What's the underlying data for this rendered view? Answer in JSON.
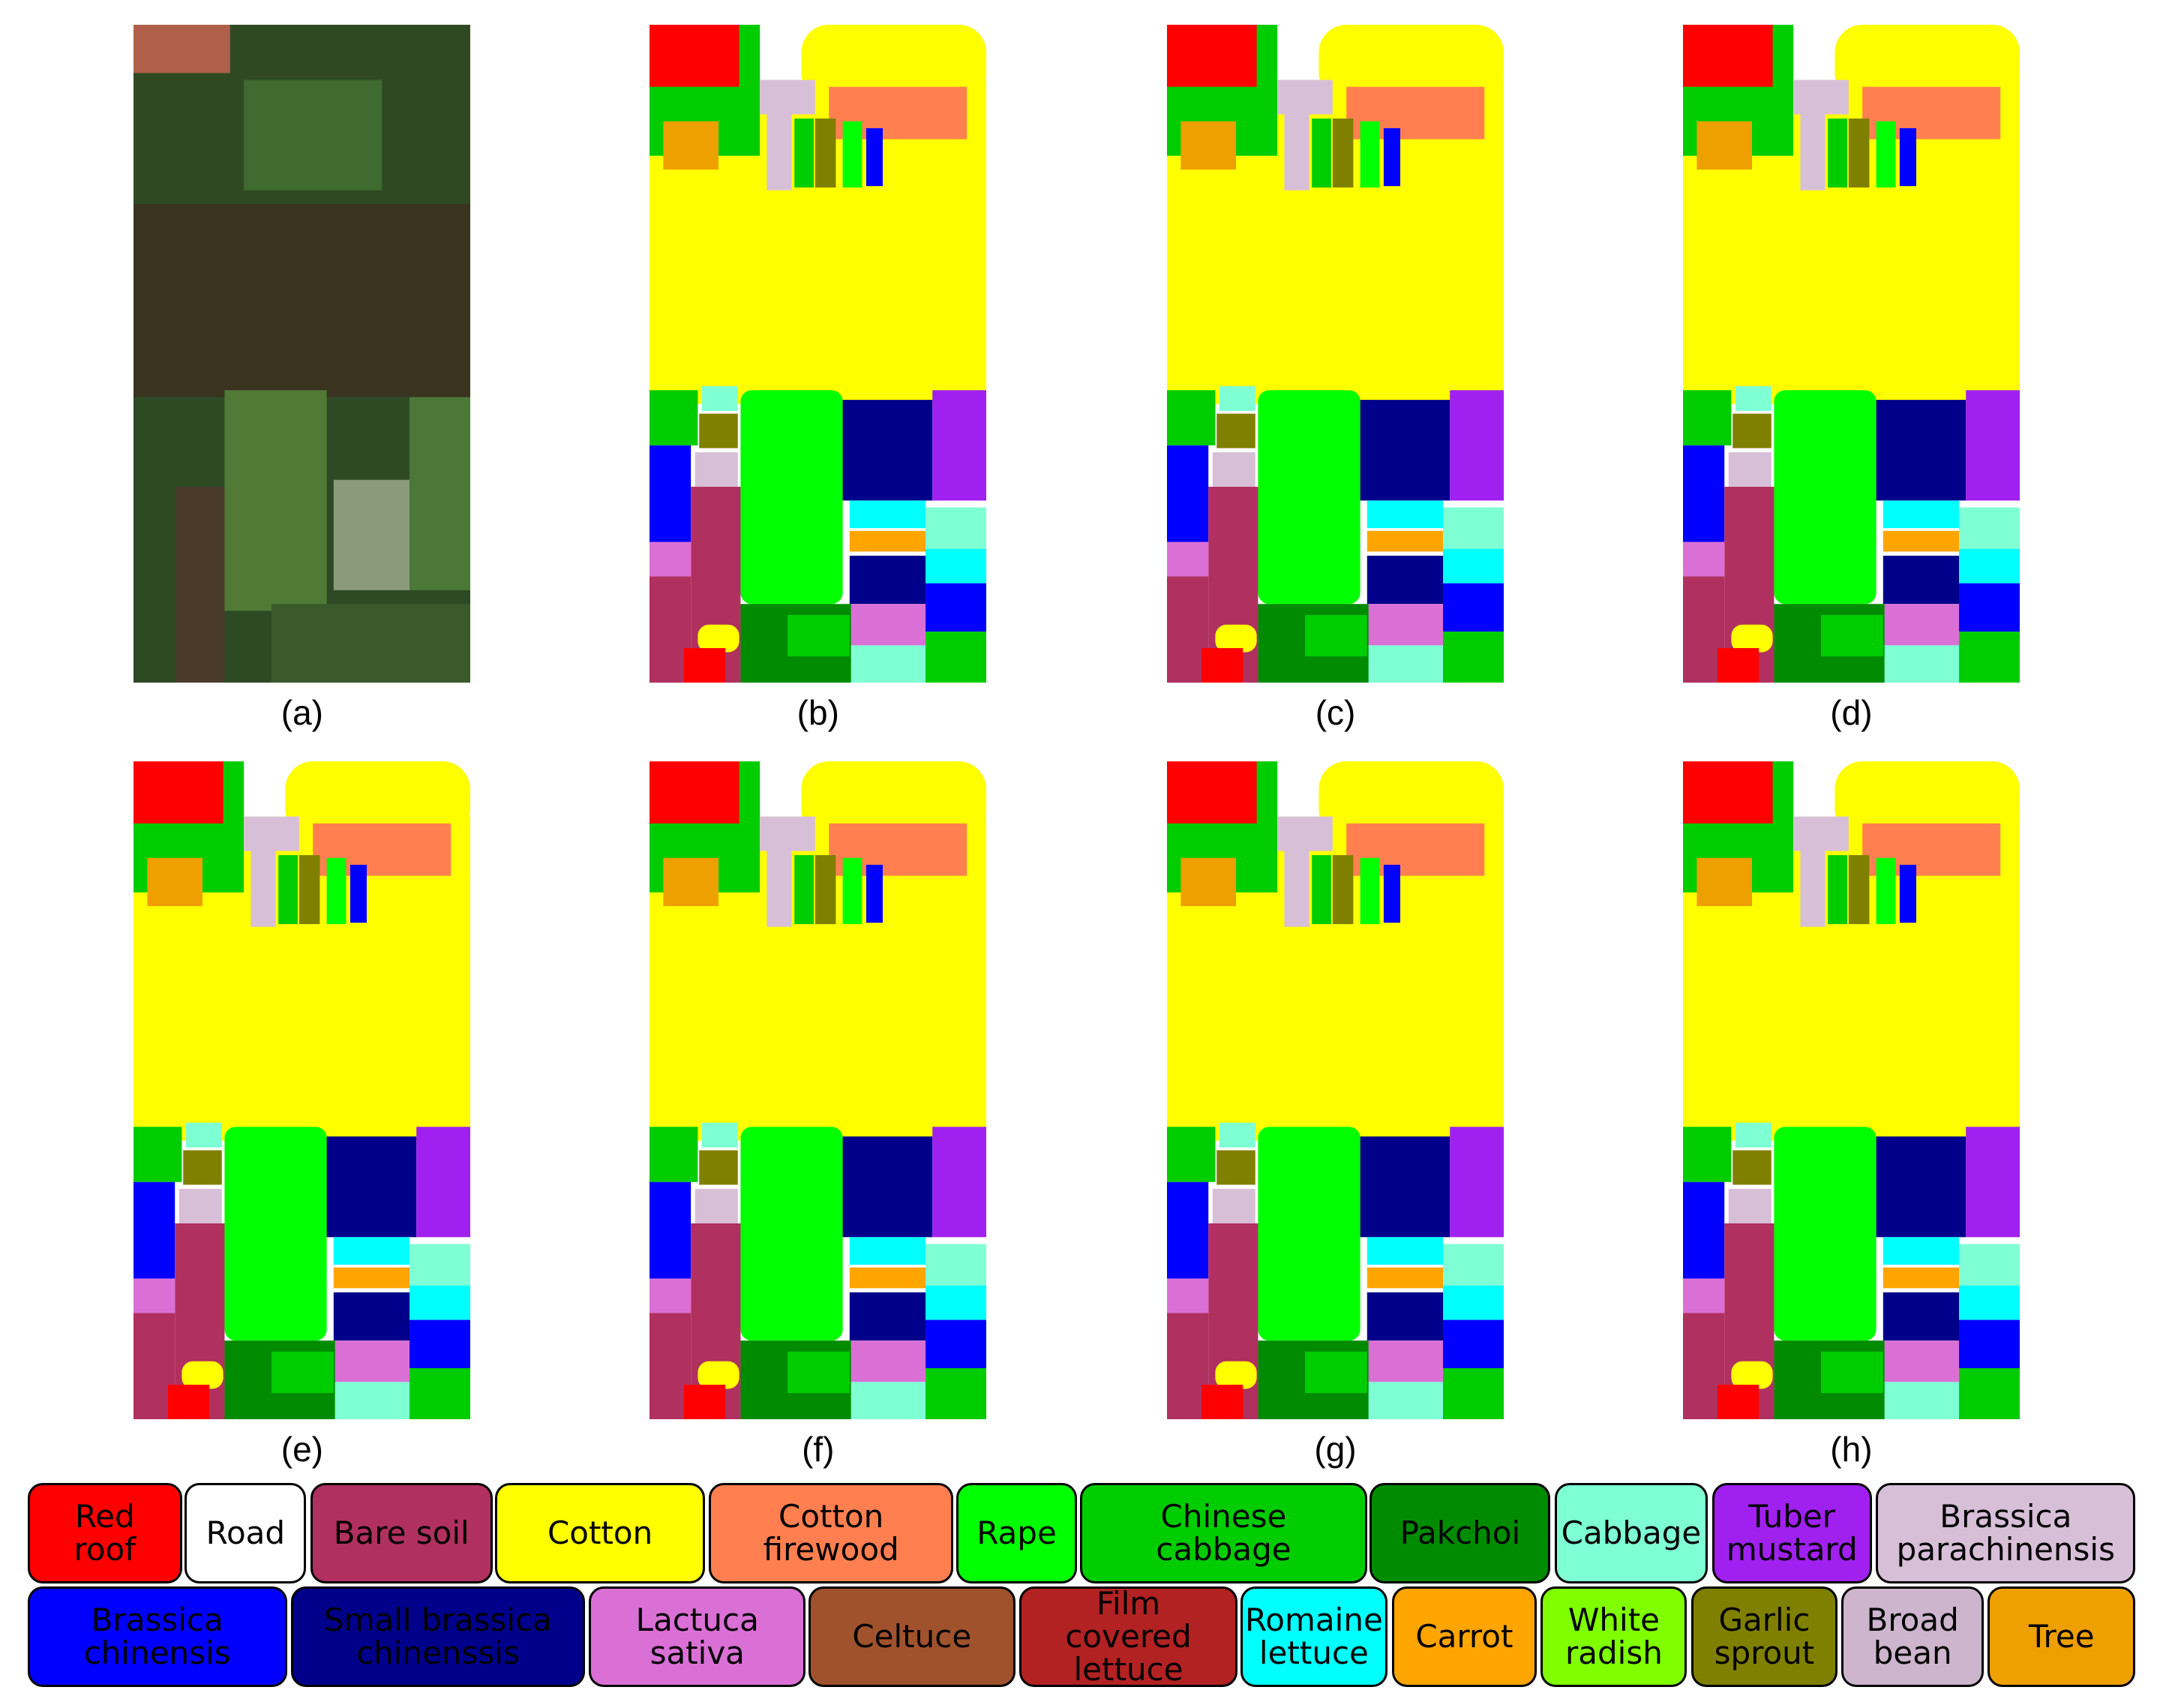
{
  "panels": [
    {
      "caption": "(a)"
    },
    {
      "caption": "(b)"
    },
    {
      "caption": "(c)"
    },
    {
      "caption": "(d)"
    },
    {
      "caption": "(e)"
    },
    {
      "caption": "(f)"
    },
    {
      "caption": "(g)"
    },
    {
      "caption": "(h)"
    }
  ],
  "legend": [
    {
      "label": "Red\nroof",
      "color": "#ff0000"
    },
    {
      "label": "Road",
      "color": "#ffffff"
    },
    {
      "label": "Bare soil",
      "color": "#b03060"
    },
    {
      "label": "Cotton",
      "color": "#ffff00"
    },
    {
      "label": "Cotton\nfirewood",
      "color": "#ff7f50"
    },
    {
      "label": "Rape",
      "color": "#00ff00"
    },
    {
      "label": "Chinese\ncabbage",
      "color": "#00cd00"
    },
    {
      "label": "Pakchoi",
      "color": "#008b00"
    },
    {
      "label": "Cabbage",
      "color": "#7fffd4"
    },
    {
      "label": "Tuber\nmustard",
      "color": "#a020f0"
    },
    {
      "label": "Brassica\nparachinensis",
      "color": "#d8bfd8"
    },
    {
      "label": "Brassica\nchinensis",
      "color": "#0000ff"
    },
    {
      "label": "Small brassica\nchinenssis",
      "color": "#00008b"
    },
    {
      "label": "Lactuca\nsativa",
      "color": "#da70d6"
    },
    {
      "label": "Celtuce",
      "color": "#a0522d"
    },
    {
      "label": "Film\ncovered\nlettuce",
      "color": "#b22222"
    },
    {
      "label": "Romaine\nlettuce",
      "color": "#00ffff"
    },
    {
      "label": "Carrot",
      "color": "#ffa500"
    },
    {
      "label": "White\nradish",
      "color": "#7fff00"
    },
    {
      "label": "Garlic\nsprout",
      "color": "#808000"
    },
    {
      "label": "Broad\nbean",
      "color": "#cdb5cd"
    },
    {
      "label": "Tree",
      "color": "#eea000"
    }
  ]
}
